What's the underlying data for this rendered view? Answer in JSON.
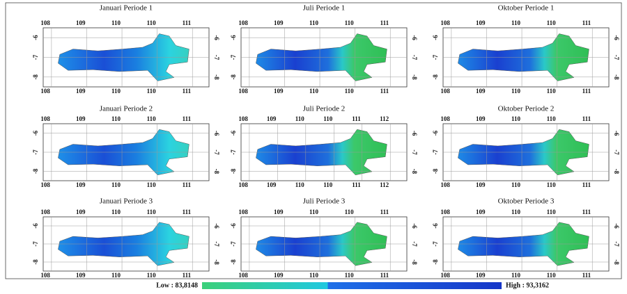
{
  "panels": [
    {
      "title": "Januari Periode 1",
      "top_ticks": [
        "108",
        "109",
        "110",
        "110",
        "111"
      ],
      "bottom_ticks": [
        "108",
        "109",
        "110",
        "110",
        "111"
      ],
      "left_ticks": [
        "-6",
        "-7",
        "-8"
      ],
      "right_ticks": [
        "-6",
        "-7",
        "-8"
      ]
    },
    {
      "title": "Juli Periode 1",
      "top_ticks": [
        "108",
        "109",
        "110",
        "110",
        "111"
      ],
      "bottom_ticks": [
        "108",
        "109",
        "110",
        "110",
        "111"
      ],
      "left_ticks": [
        "-6",
        "-7",
        "-8"
      ],
      "right_ticks": [
        "-6",
        "-7",
        "-8"
      ]
    },
    {
      "title": "Oktober Periode 1",
      "top_ticks": [
        "108",
        "109",
        "110",
        "110",
        "111"
      ],
      "bottom_ticks": [
        "108",
        "109",
        "110",
        "110",
        "111"
      ],
      "left_ticks": [
        "-6",
        "-7",
        "-8"
      ],
      "right_ticks": [
        "-6",
        "-7",
        "-8"
      ]
    },
    {
      "title": "Januari Periode 2",
      "top_ticks": [
        "108",
        "109",
        "110",
        "110",
        "111"
      ],
      "bottom_ticks": [
        "108",
        "109",
        "110",
        "110",
        "111"
      ],
      "left_ticks": [
        "-6",
        "-7",
        "-8"
      ],
      "right_ticks": [
        "-6",
        "-7",
        "-8"
      ]
    },
    {
      "title": "Juli Periode 2",
      "top_ticks": [
        "108",
        "109",
        "110",
        "110",
        "111",
        "112"
      ],
      "bottom_ticks": [
        "108",
        "109",
        "110",
        "110",
        "111",
        "112"
      ],
      "left_ticks": [
        "-6",
        "-7",
        "-8"
      ],
      "right_ticks": [
        "-6",
        "-7",
        "-8"
      ]
    },
    {
      "title": "Oktober Periode 2",
      "top_ticks": [
        "108",
        "109",
        "110",
        "110",
        "111"
      ],
      "bottom_ticks": [
        "108",
        "109",
        "110",
        "110",
        "111"
      ],
      "left_ticks": [
        "-6",
        "-7",
        "-8"
      ],
      "right_ticks": [
        "-6",
        "-7",
        "-8"
      ]
    },
    {
      "title": "Januari Periode 3",
      "top_ticks": [
        "108",
        "109",
        "110",
        "110",
        "111"
      ],
      "bottom_ticks": [
        "108",
        "109",
        "110",
        "110",
        "111"
      ],
      "left_ticks": [
        "-6",
        "-7",
        "-8"
      ],
      "right_ticks": [
        "-6",
        "-7",
        "-8"
      ]
    },
    {
      "title": "Juli Periode 3",
      "top_ticks": [
        "108",
        "109",
        "110",
        "110",
        "111"
      ],
      "bottom_ticks": [
        "108",
        "109",
        "110",
        "110",
        "111"
      ],
      "left_ticks": [
        "-6",
        "-7",
        "-8"
      ],
      "right_ticks": [
        "-6",
        "-7",
        "-8"
      ]
    },
    {
      "title": "Oktober Periode 3",
      "top_ticks": [
        "108",
        "109",
        "110",
        "110",
        "111"
      ],
      "bottom_ticks": [
        "108",
        "109",
        "110",
        "110",
        "111"
      ],
      "left_ticks": [
        "-6",
        "-7",
        "-8"
      ],
      "right_ticks": [
        "-6",
        "-7",
        "-8"
      ]
    }
  ],
  "legend": {
    "low": "Low : 83,8148",
    "high": "High : 93,3162"
  }
}
